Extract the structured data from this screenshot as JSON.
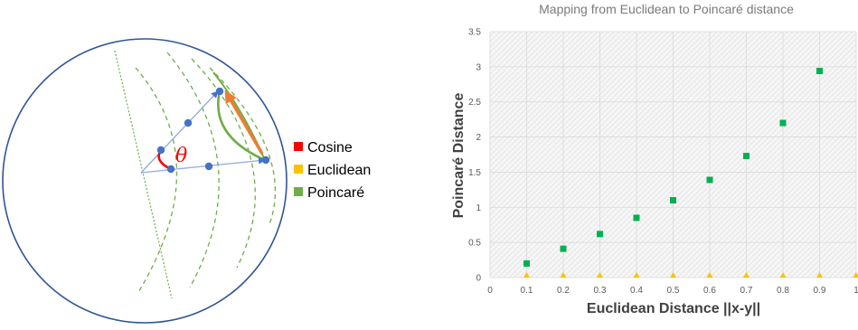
{
  "diagram": {
    "theta_symbol": "θ",
    "legend": [
      {
        "label": "Cosine",
        "color": "#ff0000"
      },
      {
        "label": "Euclidean",
        "color": "#ffc000"
      },
      {
        "label": "Poincaré",
        "color": "#70ad47"
      }
    ],
    "colors": {
      "disk": "#2f5597",
      "geodesic": "#70ad47",
      "ray": "#8faadc",
      "point": "#4472c4",
      "euclidean_arrow": "#ed7d31",
      "cosine_arc": "#ff0000"
    }
  },
  "chart_data": {
    "type": "scatter",
    "title": "Mapping from Euclidean to Poincaré distance",
    "xlabel": "Euclidean Distance ||x-y||",
    "ylabel": "Poincaré  Distance",
    "xlim": [
      0,
      1
    ],
    "ylim": [
      0,
      3.5
    ],
    "xticks": [
      "0",
      "0.1",
      "0.2",
      "0.3",
      "0.4",
      "0.5",
      "0.6",
      "0.7",
      "0.8",
      "0.9",
      "1"
    ],
    "yticks": [
      "0",
      "0.5",
      "1",
      "1.5",
      "2",
      "2.5",
      "3",
      "3.5"
    ],
    "grid": true,
    "series": [
      {
        "marker": "square",
        "color": "#00b050",
        "x": [
          0.1,
          0.2,
          0.3,
          0.4,
          0.5,
          0.6,
          0.7,
          0.8,
          0.9
        ],
        "y": [
          0.2,
          0.41,
          0.62,
          0.85,
          1.1,
          1.39,
          1.73,
          2.2,
          2.94
        ]
      },
      {
        "marker": "triangle",
        "color": "#ffc000",
        "x": [
          0.1,
          0.2,
          0.3,
          0.4,
          0.5,
          0.6,
          0.7,
          0.8,
          0.9,
          1.0
        ],
        "y": [
          0,
          0,
          0,
          0,
          0,
          0,
          0,
          0,
          0,
          0
        ]
      }
    ]
  }
}
